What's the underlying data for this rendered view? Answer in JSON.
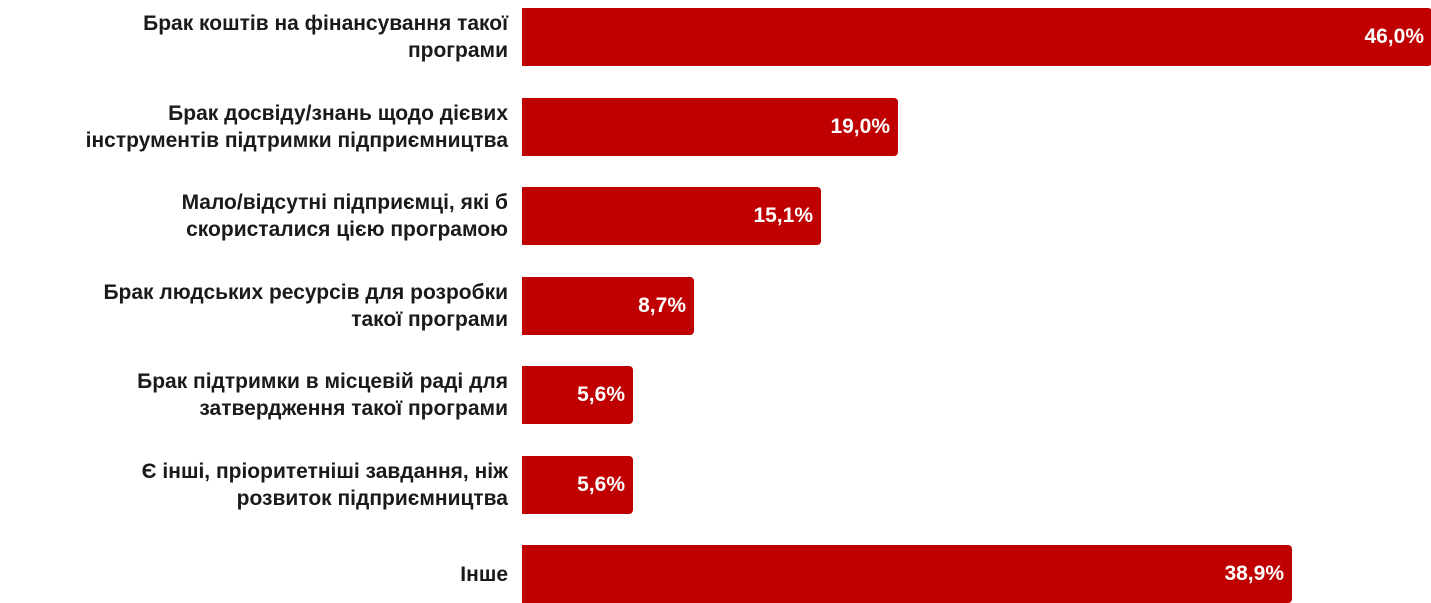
{
  "chart_data": {
    "type": "bar",
    "orientation": "horizontal",
    "categories": [
      "Брак коштів на фінансування такої програми",
      "Брак досвіду/знань щодо дієвих інструментів підтримки підприємництва",
      "Мало/відсутні підприємці, які б скористалися цією програмою",
      "Брак людських ресурсів для розробки такої програми",
      "Брак підтримки в місцевій раді для затвердження такої програми",
      "Є інші, пріоритетніші завдання, ніж розвиток підприємництва",
      "Інше"
    ],
    "label_lines": [
      [
        "Брак коштів на фінансування такої",
        "програми"
      ],
      [
        "Брак досвіду/знань щодо дієвих",
        "інструментів підтримки підприємництва"
      ],
      [
        "Мало/відсутні підприємці, які б",
        "скористалися цією програмою"
      ],
      [
        "Брак людських ресурсів для розробки",
        "такої програми"
      ],
      [
        "Брак підтримки в місцевій раді для",
        "затвердження такої програми"
      ],
      [
        "Є інші, пріоритетніші завдання, ніж",
        "розвиток підприємництва"
      ],
      [
        "Інше"
      ]
    ],
    "values": [
      46.0,
      19.0,
      15.1,
      8.7,
      5.6,
      5.6,
      38.9
    ],
    "value_labels": [
      "46,0%",
      "19,0%",
      "15,1%",
      "8,7%",
      "5,6%",
      "5,6%",
      "38,9%"
    ],
    "xlim": [
      0,
      46.0
    ],
    "bar_color": "#c00000",
    "grid": false,
    "legend": "none"
  }
}
